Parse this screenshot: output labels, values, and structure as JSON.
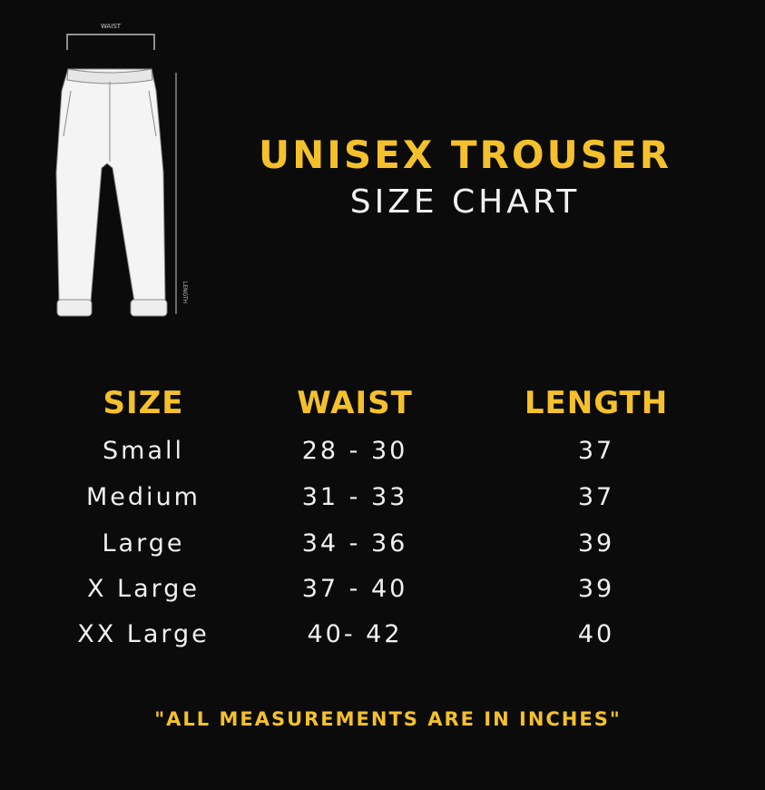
{
  "illustration": {
    "waist_label": "WAIST",
    "length_label": "LENGTH"
  },
  "title": "UNISEX TROUSER",
  "subtitle": "SIZE CHART",
  "table": {
    "headers": [
      "SIZE",
      "WAIST",
      "LENGTH"
    ],
    "rows": [
      [
        "Small",
        "28 - 30",
        "37"
      ],
      [
        "Medium",
        "31 - 33",
        "37"
      ],
      [
        "Large",
        "34 - 36",
        "39"
      ],
      [
        "X Large",
        "37 - 40",
        "39"
      ],
      [
        "XX Large",
        "40- 42",
        "40"
      ]
    ]
  },
  "note": "\"ALL MEASUREMENTS ARE IN INCHES\"",
  "colors": {
    "background": "#0b0b0b",
    "accent": "#f4c02c",
    "text": "#f0f0f0"
  }
}
